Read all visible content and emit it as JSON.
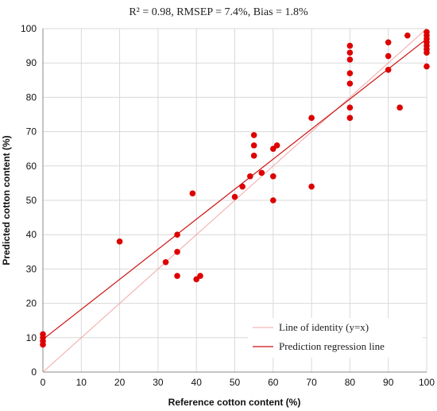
{
  "chart_data": {
    "type": "scatter",
    "title": "R² = 0.98, RMSEP = 7.4%, Bias = 1.8%",
    "xlabel": "Reference cotton content (%)",
    "ylabel": "Predicted cotton content (%)",
    "xlim": [
      0,
      100
    ],
    "ylim": [
      0,
      100
    ],
    "xticks": [
      0,
      10,
      20,
      30,
      40,
      50,
      60,
      70,
      80,
      90,
      100
    ],
    "yticks": [
      0,
      10,
      20,
      30,
      40,
      50,
      60,
      70,
      80,
      90,
      100
    ],
    "grid": true,
    "legend_position": "bottom-right",
    "points": [
      [
        0,
        8
      ],
      [
        0,
        9
      ],
      [
        0,
        10
      ],
      [
        0,
        11
      ],
      [
        20,
        38
      ],
      [
        32,
        32
      ],
      [
        35,
        40
      ],
      [
        35,
        35
      ],
      [
        35,
        28
      ],
      [
        39,
        52
      ],
      [
        40,
        27
      ],
      [
        41,
        28
      ],
      [
        50,
        51
      ],
      [
        52,
        54
      ],
      [
        54,
        57
      ],
      [
        55,
        69
      ],
      [
        55,
        66
      ],
      [
        55,
        63
      ],
      [
        57,
        58
      ],
      [
        60,
        65
      ],
      [
        60,
        57
      ],
      [
        60,
        50
      ],
      [
        61,
        66
      ],
      [
        70,
        74
      ],
      [
        70,
        54
      ],
      [
        80,
        95
      ],
      [
        80,
        93
      ],
      [
        80,
        91
      ],
      [
        80,
        87
      ],
      [
        80,
        84
      ],
      [
        80,
        77
      ],
      [
        80,
        74
      ],
      [
        90,
        96
      ],
      [
        90,
        92
      ],
      [
        90,
        88
      ],
      [
        93,
        77
      ],
      [
        95,
        98
      ],
      [
        100,
        99
      ],
      [
        100,
        98
      ],
      [
        100,
        97
      ],
      [
        100,
        96
      ],
      [
        100,
        95
      ],
      [
        100,
        94
      ],
      [
        100,
        93
      ],
      [
        100,
        89
      ]
    ],
    "lines": [
      {
        "name": "Line of identity (y=x)",
        "x": [
          0,
          100
        ],
        "y": [
          0,
          100
        ],
        "color": "#f4a6a6"
      },
      {
        "name": "Prediction regression line",
        "x": [
          0,
          100
        ],
        "y": [
          9.5,
          97
        ],
        "color": "#cc1111"
      }
    ],
    "point_color": "#dd0000"
  }
}
